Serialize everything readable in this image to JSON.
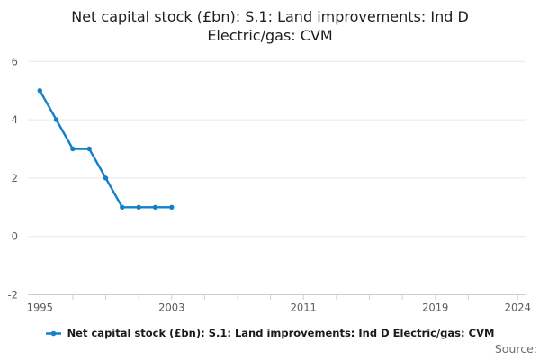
{
  "title": "Net capital stock (£bn): S.1: Land improvements: Ind D Electric/gas: CVM",
  "legend": {
    "label": "Net capital stock (£bn): S.1: Land improvements: Ind D Electric/gas: CVM"
  },
  "source_label": "Source:",
  "colors": {
    "line": "#1381c9",
    "grid": "#e8e8e8",
    "axis": "#c5cfdd",
    "tick_text": "#5a5a5a"
  },
  "chart_data": {
    "type": "line",
    "title": "Net capital stock (£bn): S.1: Land improvements: Ind D Electric/gas: CVM",
    "series": [
      {
        "name": "Net capital stock (£bn): S.1: Land improvements: Ind D Electric/gas: CVM",
        "x": [
          1995,
          1996,
          1997,
          1998,
          1999,
          2000,
          2001,
          2002,
          2003
        ],
        "values": [
          5,
          4,
          3,
          3,
          2,
          1,
          1,
          1,
          1
        ]
      }
    ],
    "xlabel": "",
    "ylabel": "",
    "xlim": [
      1995,
      2024
    ],
    "ylim": [
      -2,
      6
    ],
    "y_ticks": [
      6,
      4,
      2,
      0,
      -2
    ],
    "x_tick_labels": [
      1995,
      2003,
      2011,
      2019,
      2024
    ],
    "x_minor_ticks": [
      1995,
      1997,
      1999,
      2001,
      2003,
      2005,
      2007,
      2009,
      2011,
      2013,
      2015,
      2017,
      2019,
      2021,
      2024
    ],
    "grid": true,
    "legend_position": "bottom",
    "line_color": "#1381c9",
    "marker": "circle"
  }
}
